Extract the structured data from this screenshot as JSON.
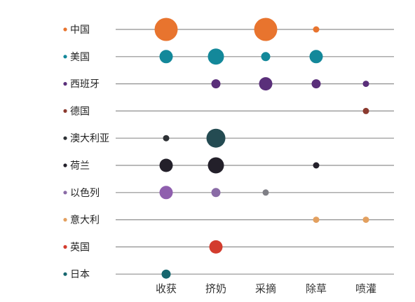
{
  "chart_data": {
    "type": "scatter",
    "title": "",
    "xlabel": "",
    "ylabel": "",
    "categories": [
      "收获",
      "挤奶",
      "采摘",
      "除草",
      "喷灌"
    ],
    "series": [
      {
        "name": "中国",
        "color": "#E8742E",
        "values": [
          5,
          0,
          5,
          1,
          0
        ]
      },
      {
        "name": "美国",
        "color": "#13889A",
        "values": [
          3,
          4,
          2,
          3,
          0
        ]
      },
      {
        "name": "西班牙",
        "color": "#5A2F7A",
        "values": [
          0,
          2,
          3,
          2,
          1
        ]
      },
      {
        "name": "德国",
        "color": "#8B3A2F",
        "values": [
          0,
          0,
          0,
          0,
          1
        ]
      },
      {
        "name": "澳大利亚",
        "color": "#2E3135",
        "values": [
          1,
          0,
          0,
          0,
          0
        ],
        "extra": [
          {
            "x": "挤奶",
            "value": 5,
            "color": "#244B52"
          }
        ]
      },
      {
        "name": "荷兰",
        "color": "#23202A",
        "values": [
          3,
          4,
          0,
          1,
          0
        ]
      },
      {
        "name": "以色列",
        "color": "#8A6BA6",
        "values": [
          3,
          2,
          1,
          0,
          0
        ],
        "point_colors": [
          "#8F5FAE",
          "#8A6BA6",
          "#7F7F86",
          "#8A6BA6",
          "#8A6BA6"
        ]
      },
      {
        "name": "意大利",
        "color": "#E3A05F",
        "values": [
          0,
          0,
          0,
          1,
          1
        ]
      },
      {
        "name": "英国",
        "color": "#D33C2E",
        "values": [
          0,
          3,
          0,
          0,
          0
        ]
      },
      {
        "name": "日本",
        "color": "#16666E",
        "values": [
          2,
          0,
          0,
          0,
          0
        ]
      }
    ],
    "size_scale": "relative 1-5",
    "grid": false,
    "legend": "left, inline with rows"
  }
}
